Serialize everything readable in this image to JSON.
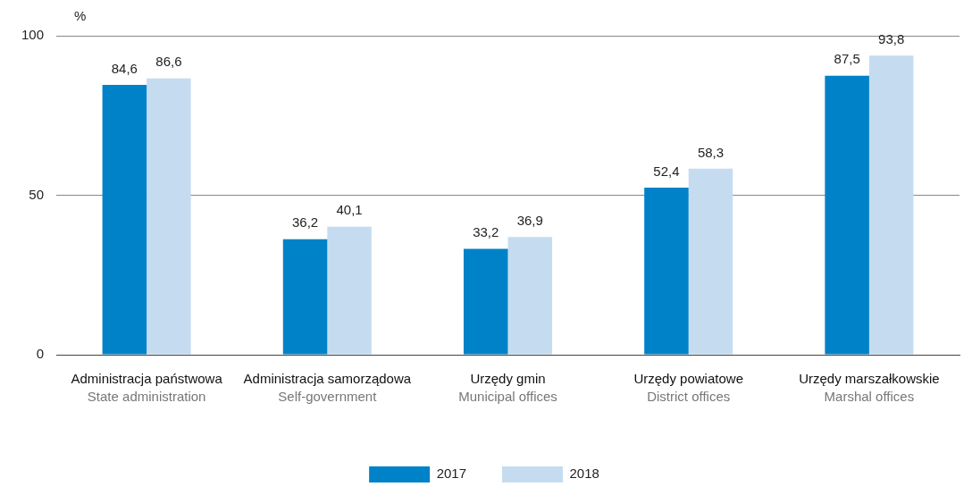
{
  "chart_data": {
    "type": "bar",
    "ylabel": "%",
    "categories": [
      "Administracja państwowa\nState administration",
      "Administracja samorządowa\nSelf-government",
      "Urzędy gmin\nMunicipal offices",
      "Urzędy powiatowe\nDistrict offices",
      "Urzędy marszałkowskie\nMarshal offices"
    ],
    "series": [
      {
        "name": "2017",
        "color": "#0082c8",
        "values": [
          84.6,
          36.2,
          33.2,
          52.4,
          87.5
        ],
        "value_labels": [
          "84,6",
          "36,2",
          "33,2",
          "52,4",
          "87,5"
        ]
      },
      {
        "name": "2018",
        "color": "#c5dcf0",
        "values": [
          86.6,
          40.1,
          36.9,
          58.3,
          93.8
        ],
        "value_labels": [
          "86,6",
          "40,1",
          "36,9",
          "58,3",
          "93,8"
        ]
      }
    ],
    "ylim": [
      0,
      100
    ],
    "yticks": [
      0,
      50,
      100
    ],
    "grid": "y",
    "legend": "bottom"
  }
}
